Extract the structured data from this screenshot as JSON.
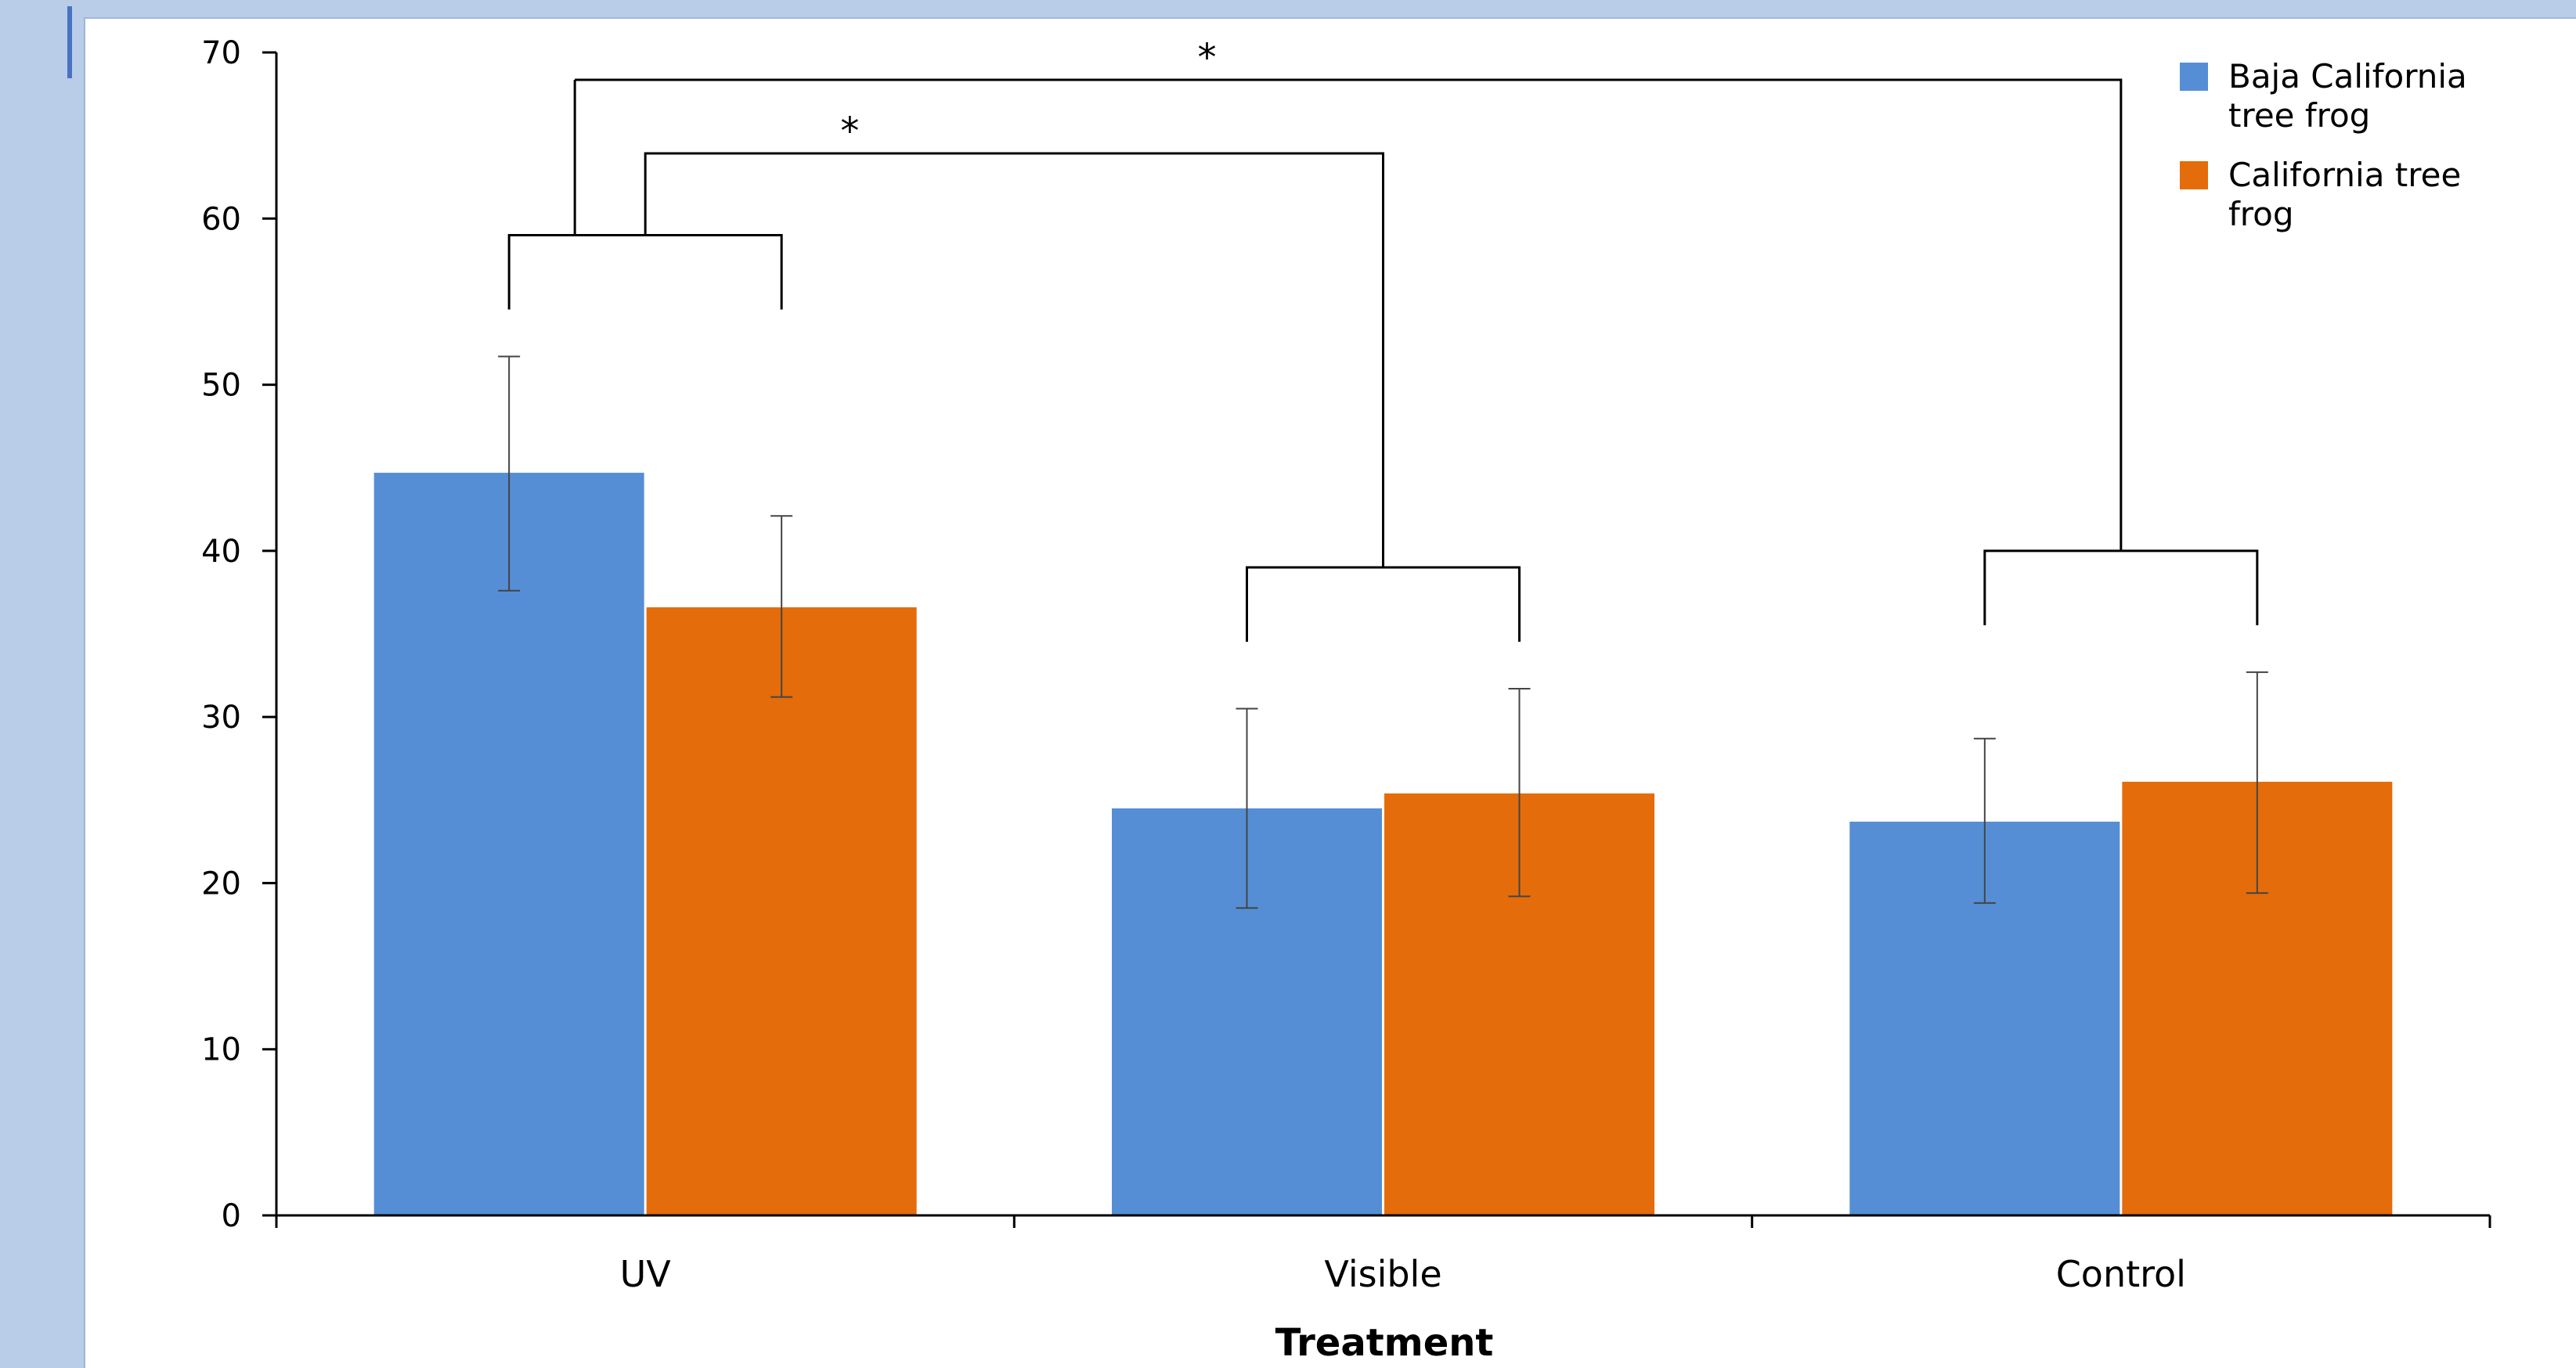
{
  "chart_data": {
    "type": "bar",
    "categories": [
      "UV",
      "Visible",
      "Control"
    ],
    "xlabel": "Treatment",
    "ylabel": "",
    "ylim": [
      0,
      70
    ],
    "yticks": [
      0,
      10,
      20,
      30,
      40,
      50,
      60,
      70
    ],
    "grid": false,
    "legend_position": "top-right",
    "series": [
      {
        "name": "Baja California tree frog",
        "legend_lines": [
          "Baja California",
          "tree frog"
        ],
        "color": "#558ed5",
        "values": [
          44.7,
          24.5,
          23.7
        ],
        "err_low": [
          37.6,
          18.5,
          18.8
        ],
        "err_high": [
          51.7,
          30.5,
          28.7
        ]
      },
      {
        "name": "California tree frog",
        "legend_lines": [
          "California tree",
          "frog"
        ],
        "color": "#e46c0a",
        "values": [
          36.6,
          25.4,
          26.1
        ],
        "err_low": [
          31.2,
          19.2,
          19.4
        ],
        "err_high": [
          42.1,
          31.7,
          32.7
        ]
      }
    ],
    "annotations": [
      {
        "text": "*",
        "between": [
          "UV",
          "Control"
        ]
      },
      {
        "text": "*",
        "between": [
          "UV",
          "Visible"
        ]
      }
    ]
  }
}
